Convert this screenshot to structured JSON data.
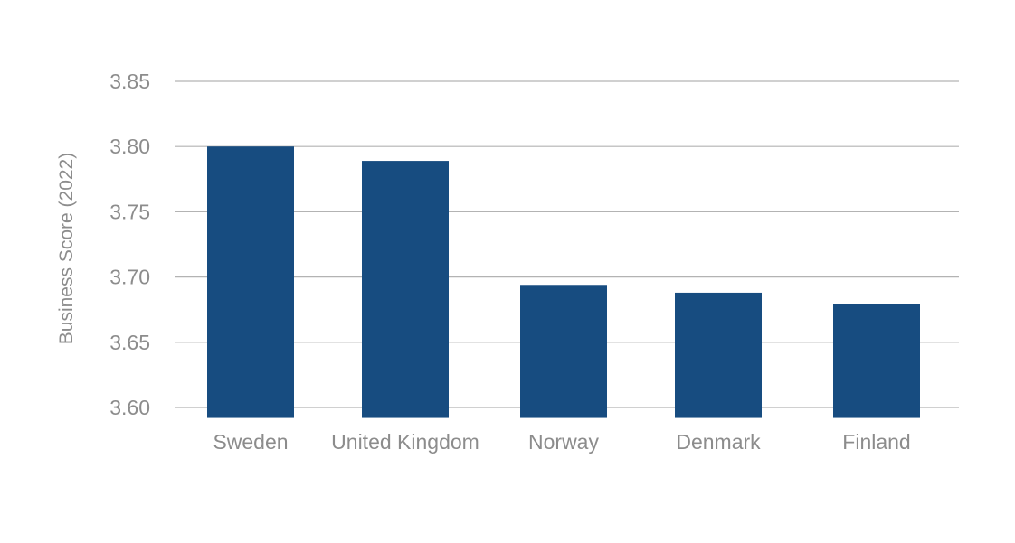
{
  "chart_data": {
    "type": "bar",
    "title": "",
    "xlabel": "",
    "ylabel": "Business Score (2022)",
    "categories": [
      "Sweden",
      "United Kingdom",
      "Norway",
      "Denmark",
      "Finland"
    ],
    "values": [
      3.8,
      3.789,
      3.694,
      3.688,
      3.679
    ],
    "ylim": [
      3.592,
      3.85
    ],
    "yticks": [
      3.85,
      3.8,
      3.75,
      3.7,
      3.65,
      3.6
    ],
    "ytick_labels": [
      "3.85",
      "3.80",
      "3.75",
      "3.70",
      "3.65",
      "3.60"
    ],
    "grid": true,
    "legend": "none",
    "bar_color": "#174c80"
  }
}
